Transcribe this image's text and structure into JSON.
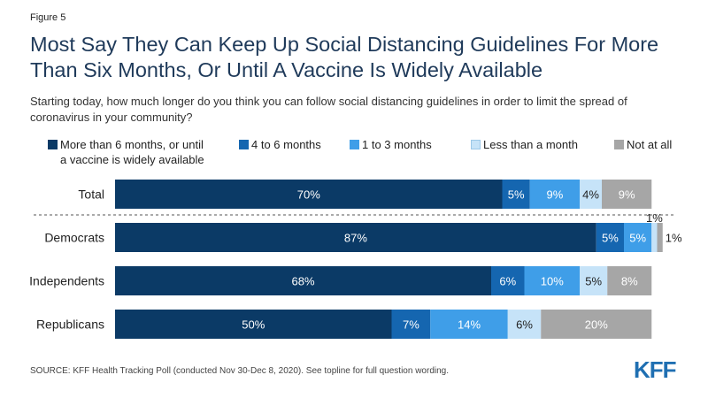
{
  "figure_label": "Figure 5",
  "title": "Most Say They Can Keep Up Social Distancing Guidelines For More Than Six Months, Or Until A Vaccine Is Widely Available",
  "subtitle": "Starting today, how much longer do you think you can follow social distancing guidelines in order to limit the spread of coronavirus in your community?",
  "source": "SOURCE: KFF Health Tracking Poll (conducted Nov 30-Dec 8, 2020). See topline for full question wording.",
  "logo_text": "KFF",
  "colors": {
    "more_than_6": "#0b3a66",
    "4_to_6": "#1566b0",
    "1_to_3": "#3f9ee8",
    "less_than_month": "#c6e3f8",
    "not_at_all": "#a6a6a6"
  },
  "chart_data": {
    "type": "bar",
    "orientation": "horizontal",
    "stacked": true,
    "categories": [
      "Total",
      "Democrats",
      "Independents",
      "Republicans"
    ],
    "series": [
      {
        "name": "More than 6 months, or until\na vaccine is widely available",
        "color": "#0b3a66",
        "label_color": "#ffffff",
        "values": [
          70,
          87,
          68,
          50
        ]
      },
      {
        "name": "4 to 6 months",
        "color": "#1566b0",
        "label_color": "#ffffff",
        "values": [
          5,
          5,
          6,
          7
        ]
      },
      {
        "name": "1 to 3 months",
        "color": "#3f9ee8",
        "label_color": "#ffffff",
        "values": [
          9,
          5,
          10,
          14
        ]
      },
      {
        "name": "Less than a month",
        "color": "#c6e3f8",
        "label_color": "#222222",
        "values": [
          4,
          1,
          5,
          6
        ]
      },
      {
        "name": "Not at all",
        "color": "#a6a6a6",
        "label_color": "#ffffff",
        "values": [
          9,
          1,
          8,
          20
        ]
      }
    ],
    "value_suffix": "%",
    "xlim": [
      0,
      100
    ],
    "legend_position": "top",
    "grid": false
  }
}
